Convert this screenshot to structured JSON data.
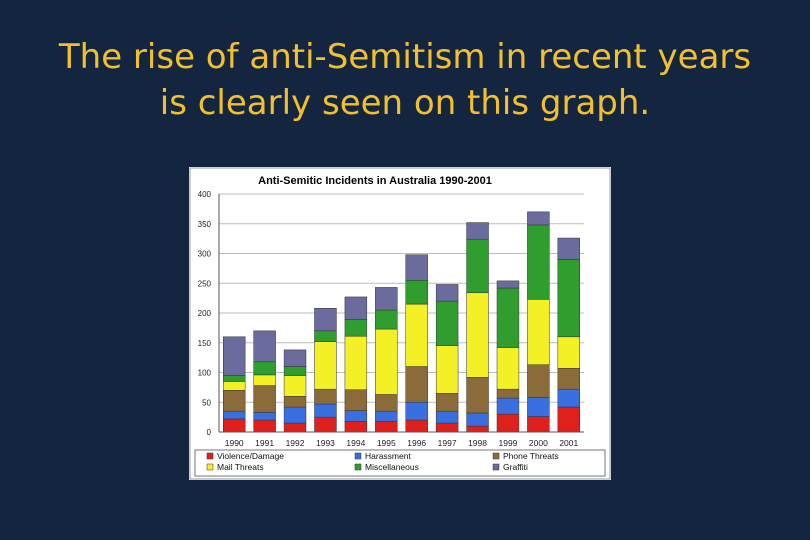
{
  "slide": {
    "title_line1": "The rise of anti-Semitism in recent years",
    "title_line2": "is clearly seen on this graph."
  },
  "chart_data": {
    "type": "bar",
    "stacked": true,
    "title": "Anti-Semitic Incidents in Australia 1990-2001",
    "xlabel": "",
    "ylabel": "",
    "ylim": [
      0,
      400
    ],
    "yticks": [
      0,
      50,
      100,
      150,
      200,
      250,
      300,
      350,
      400
    ],
    "grid": true,
    "legend_position": "bottom",
    "categories": [
      "1990",
      "1991",
      "1992",
      "1993",
      "1994",
      "1995",
      "1996",
      "1997",
      "1998",
      "1999",
      "2000",
      "2001"
    ],
    "series": [
      {
        "name": "Violence/Damage",
        "color": "#e0201c",
        "values": [
          22,
          20,
          15,
          25,
          18,
          18,
          20,
          15,
          10,
          30,
          26,
          42
        ]
      },
      {
        "name": "Harassment",
        "color": "#3a6fe0",
        "values": [
          13,
          13,
          27,
          22,
          18,
          17,
          30,
          20,
          22,
          27,
          32,
          30
        ]
      },
      {
        "name": "Phone Threats",
        "color": "#8c6b3a",
        "values": [
          35,
          45,
          18,
          25,
          35,
          28,
          60,
          30,
          60,
          15,
          55,
          35
        ]
      },
      {
        "name": "Mail Threats",
        "color": "#f4f026",
        "values": [
          15,
          18,
          35,
          80,
          90,
          110,
          105,
          80,
          142,
          70,
          110,
          53
        ]
      },
      {
        "name": "Miscellaneous",
        "color": "#2f9e2f",
        "values": [
          10,
          22,
          15,
          18,
          28,
          32,
          40,
          75,
          90,
          100,
          125,
          130
        ]
      },
      {
        "name": "Graffiti",
        "color": "#6b6b9e",
        "values": [
          65,
          52,
          28,
          38,
          38,
          38,
          43,
          28,
          28,
          12,
          22,
          36
        ]
      }
    ]
  }
}
